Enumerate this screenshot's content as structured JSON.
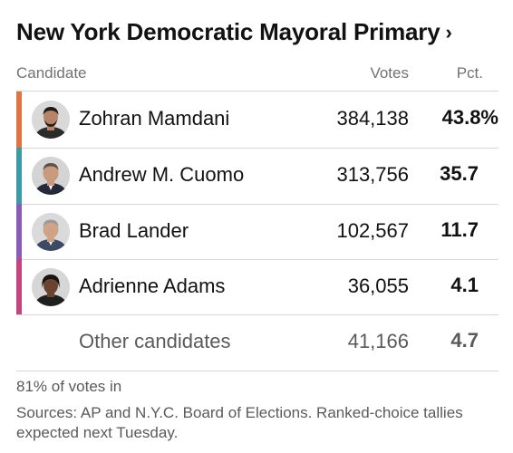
{
  "header": {
    "title": "New York Democratic Mayoral Primary",
    "chevron": "›"
  },
  "columns": {
    "candidate": "Candidate",
    "votes": "Votes",
    "pct": "Pct."
  },
  "candidates": [
    {
      "name": "Zohran Mamdani",
      "votes": "384,138",
      "pct": "43.8%",
      "color": "#e27240",
      "icon": "candidate-photo"
    },
    {
      "name": "Andrew M. Cuomo",
      "votes": "313,756",
      "pct": "35.7",
      "color": "#3a9ba6",
      "icon": "candidate-photo"
    },
    {
      "name": "Brad Lander",
      "votes": "102,567",
      "pct": "11.7",
      "color": "#8a5cb7",
      "icon": "candidate-photo"
    },
    {
      "name": "Adrienne Adams",
      "votes": "36,055",
      "pct": "4.1",
      "color": "#c4457e",
      "icon": "candidate-photo"
    }
  ],
  "other": {
    "name": "Other candidates",
    "votes": "41,166",
    "pct": "4.7"
  },
  "footer": {
    "reporting": "81% of votes in",
    "source": "Sources: AP and N.Y.C. Board of Elections. Ranked-choice tallies expected next Tuesday."
  }
}
